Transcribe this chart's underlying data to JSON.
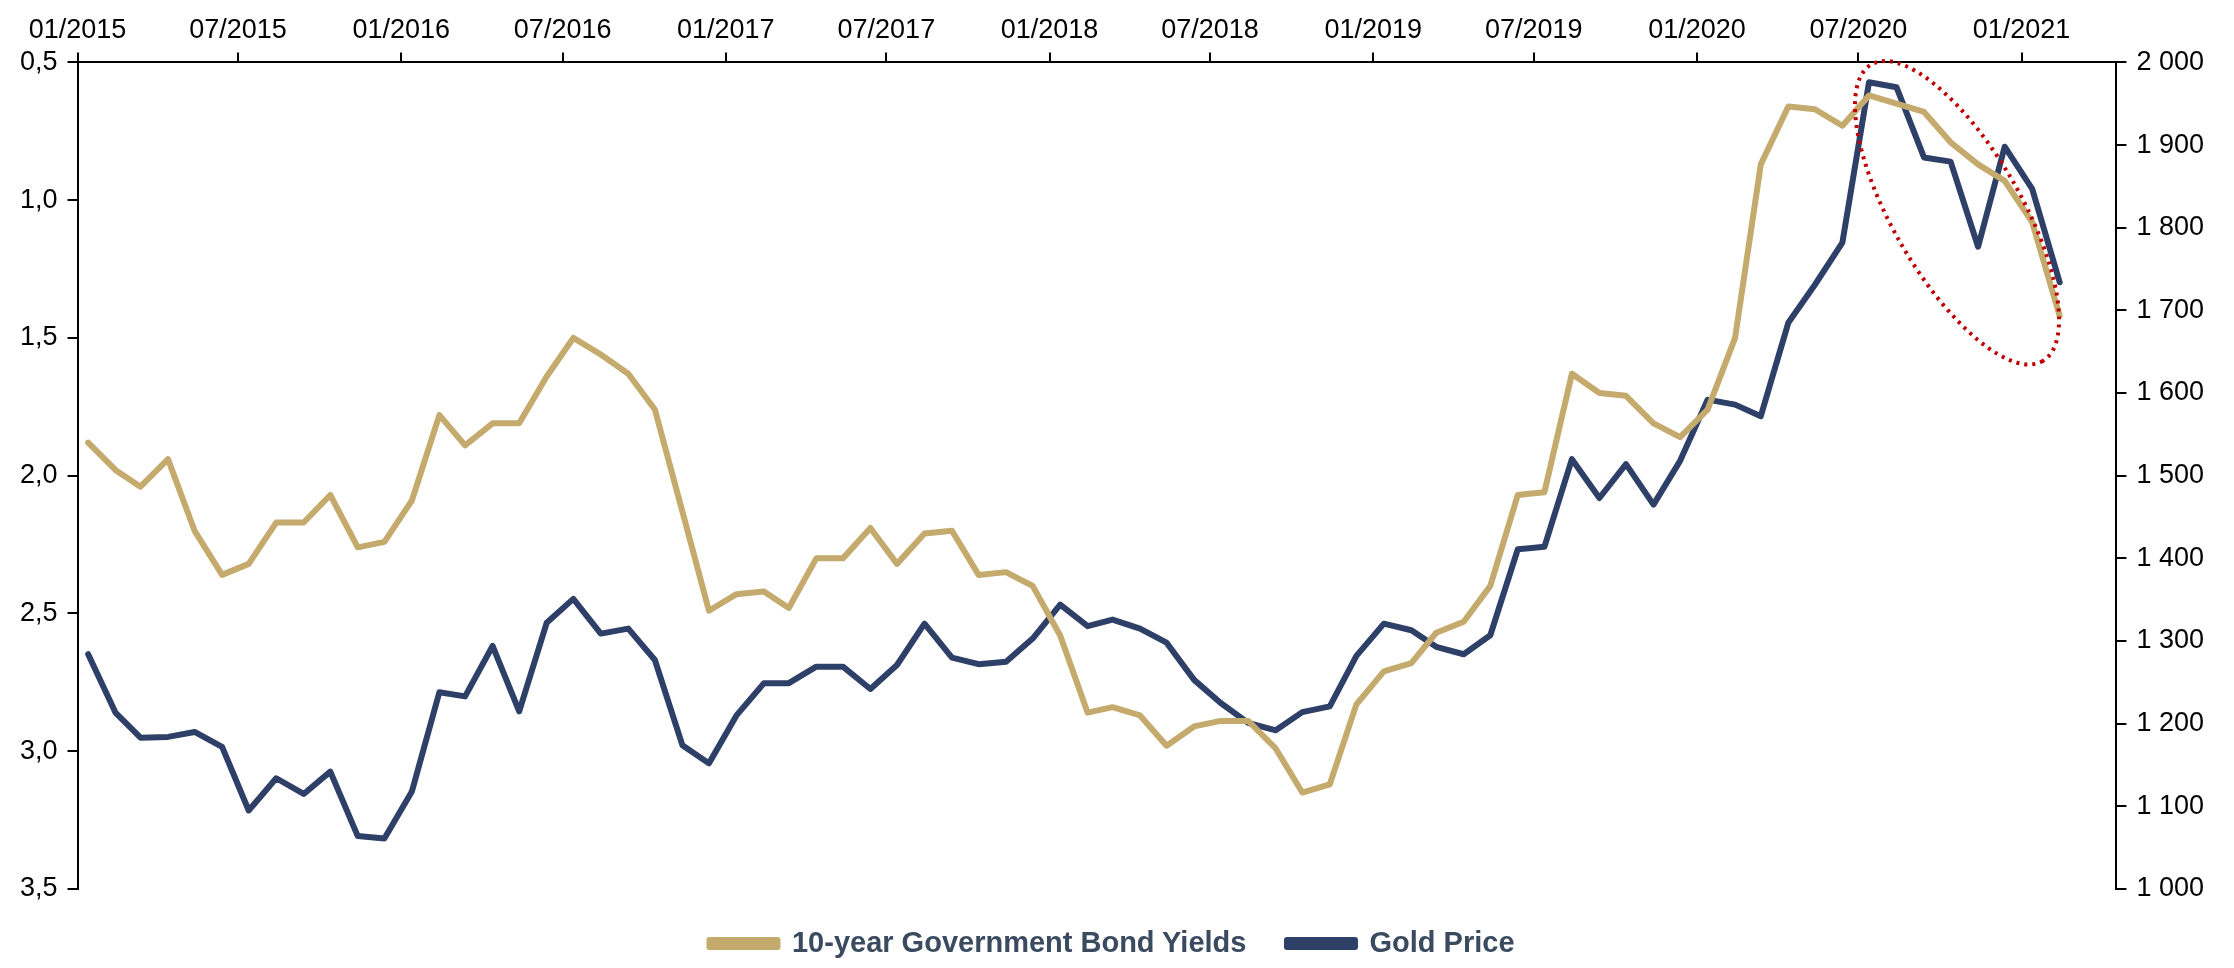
{
  "chart_data": {
    "type": "line",
    "x": [
      "2015-01-13",
      "2015-02-13",
      "2015-03-13",
      "2015-04-13",
      "2015-05-13",
      "2015-06-13",
      "2015-07-13",
      "2015-08-13",
      "2015-09-13",
      "2015-10-13",
      "2015-11-13",
      "2015-12-13",
      "2016-01-13",
      "2016-02-13",
      "2016-03-13",
      "2016-04-13",
      "2016-05-13",
      "2016-06-13",
      "2016-07-13",
      "2016-08-13",
      "2016-09-13",
      "2016-10-13",
      "2016-11-13",
      "2016-12-13",
      "2017-01-13",
      "2017-02-13",
      "2017-03-13",
      "2017-04-13",
      "2017-05-13",
      "2017-06-13",
      "2017-07-13",
      "2017-08-13",
      "2017-09-13",
      "2017-10-13",
      "2017-11-13",
      "2017-12-13",
      "2018-01-13",
      "2018-02-13",
      "2018-03-13",
      "2018-04-13",
      "2018-05-13",
      "2018-06-13",
      "2018-07-13",
      "2018-08-13",
      "2018-09-13",
      "2018-10-13",
      "2018-11-13",
      "2018-12-13",
      "2019-01-13",
      "2019-02-13",
      "2019-03-13",
      "2019-04-13",
      "2019-05-13",
      "2019-06-13",
      "2019-07-13",
      "2019-08-13",
      "2019-09-13",
      "2019-10-13",
      "2019-11-13",
      "2019-12-13",
      "2020-01-13",
      "2020-02-13",
      "2020-03-13",
      "2020-04-13",
      "2020-05-13",
      "2020-06-13",
      "2020-07-13",
      "2020-08-13",
      "2020-09-13",
      "2020-10-13",
      "2020-11-13",
      "2020-12-13",
      "2021-01-13",
      "2021-02-13"
    ],
    "series": [
      {
        "name": "10-year Government Bond Yields",
        "color": "#c4aa6c",
        "values": [
          1.88,
          1.98,
          2.04,
          1.94,
          2.2,
          2.36,
          2.32,
          2.17,
          2.17,
          2.07,
          2.26,
          2.24,
          2.09,
          1.78,
          1.89,
          1.81,
          1.81,
          1.64,
          1.5,
          1.56,
          1.63,
          1.76,
          2.13,
          2.49,
          2.43,
          2.42,
          2.48,
          2.3,
          2.3,
          2.19,
          2.32,
          2.21,
          2.2,
          2.36,
          2.35,
          2.4,
          2.58,
          2.86,
          2.84,
          2.87,
          2.98,
          2.91,
          2.89,
          2.89,
          2.99,
          3.15,
          3.12,
          2.83,
          2.71,
          2.68,
          2.57,
          2.53,
          2.4,
          2.07,
          2.06,
          1.63,
          1.7,
          1.71,
          1.81,
          1.86,
          1.76,
          1.5,
          0.87,
          0.66,
          0.67,
          0.73,
          0.62,
          0.65,
          0.68,
          0.79,
          0.87,
          0.93,
          1.08,
          1.42
        ]
      },
      {
        "name": "Gold Price",
        "color": "#2e4068",
        "axis": "y2",
        "values": [
          1284,
          1213,
          1183,
          1184,
          1190,
          1172,
          1095,
          1134,
          1115,
          1142,
          1064,
          1061,
          1118,
          1238,
          1233,
          1294,
          1215,
          1322,
          1351,
          1309,
          1315,
          1277,
          1174,
          1152,
          1210,
          1249,
          1249,
          1269,
          1269,
          1242,
          1271,
          1321,
          1280,
          1272,
          1275,
          1303,
          1344,
          1318,
          1326,
          1315,
          1298,
          1253,
          1225,
          1201,
          1192,
          1214,
          1221,
          1282,
          1321,
          1313,
          1293,
          1284,
          1307,
          1411,
          1414,
          1520,
          1473,
          1514,
          1465,
          1518,
          1592,
          1586,
          1572,
          1685,
          1731,
          1782,
          1976,
          1970,
          1885,
          1880,
          1777,
          1898,
          1847,
          1734
        ]
      }
    ],
    "xlim": [
      "2015-01-01",
      "2021-04-18"
    ],
    "xticks": [
      {
        "value": "2015-01-01",
        "label": "01/2015"
      },
      {
        "value": "2015-07-01",
        "label": "07/2015"
      },
      {
        "value": "2016-01-01",
        "label": "01/2016"
      },
      {
        "value": "2016-07-01",
        "label": "07/2016"
      },
      {
        "value": "2017-01-01",
        "label": "01/2017"
      },
      {
        "value": "2017-07-01",
        "label": "07/2017"
      },
      {
        "value": "2018-01-01",
        "label": "01/2018"
      },
      {
        "value": "2018-07-01",
        "label": "07/2018"
      },
      {
        "value": "2019-01-01",
        "label": "01/2019"
      },
      {
        "value": "2019-07-01",
        "label": "07/2019"
      },
      {
        "value": "2020-01-01",
        "label": "01/2020"
      },
      {
        "value": "2020-07-01",
        "label": "07/2020"
      },
      {
        "value": "2021-01-01",
        "label": "01/2021"
      }
    ],
    "ylim": [
      3.5,
      0.5
    ],
    "yticks": [
      {
        "value": 0.5,
        "label": "0,5"
      },
      {
        "value": 1,
        "label": "1,0"
      },
      {
        "value": 1.5,
        "label": "1,5"
      },
      {
        "value": 2,
        "label": "2,0"
      },
      {
        "value": 2.5,
        "label": "2,5"
      },
      {
        "value": 3,
        "label": "3,0"
      },
      {
        "value": 3.5,
        "label": "3,5"
      }
    ],
    "y2lim": [
      1000,
      2000
    ],
    "y2ticks": [
      {
        "value": 1000,
        "label": "1 000"
      },
      {
        "value": 1100,
        "label": "1 100"
      },
      {
        "value": 1200,
        "label": "1 200"
      },
      {
        "value": 1300,
        "label": "1 300"
      },
      {
        "value": 1400,
        "label": "1 400"
      },
      {
        "value": 1500,
        "label": "1 500"
      },
      {
        "value": 1600,
        "label": "1 600"
      },
      {
        "value": 1700,
        "label": "1 700"
      },
      {
        "value": 1800,
        "label": "1 800"
      },
      {
        "value": 1900,
        "label": "1 900"
      },
      {
        "value": 2000,
        "label": "2 000"
      }
    ],
    "legend": "bottom",
    "marker": "none",
    "line_style": "solid"
  }
}
